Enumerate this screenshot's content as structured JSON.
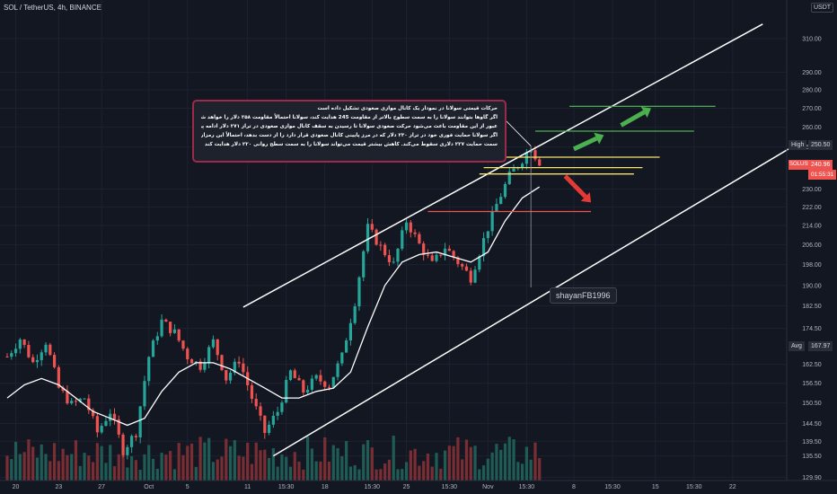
{
  "header": {
    "title": "SOL / TetherUS, 4h, BINANCE",
    "currency": "USDT"
  },
  "note": {
    "lines": [
      "حرکات قیمتی سولانا در نمودار یک کانال موازی صعودی تشکیل داده است",
      "اگر گاوها بتوانند سولانا را به سمت سطوح بالاتر از مقاومت 245 هدایت کند، سولانا احتمالاً مقاومت ۲۵۸ دلار را خواهد شکست",
      "عبور از این مقاومت باعث می‌شود حرکت صعودی سولانا تا رسیدن به سقف کانال موازی صعودی در تراز ۲۷۱ دلار ادامه پیدا کند",
      "اگر سولانا حمایت فوری خود در تراز ۲۳۰ دلار که در مرز پایینی کانال صعودی قرار دارد را از دست بدهد، احتمالاً این رمزارز به",
      "سمت حمایت ۲۲۷ دلاری سقوط می‌کند. کاهش بیشتر قیمت می‌تواند سولانا را به سمت سطح روانی ۲۲۰ دلار هدایت کند"
    ]
  },
  "watermark": "shayanFB1996",
  "price_axis": {
    "labels": [
      "310.00",
      "290.00",
      "280.00",
      "270.00",
      "260.00",
      "250.00",
      "230.00",
      "222.00",
      "214.00",
      "206.00",
      "198.00",
      "190.00",
      "182.50",
      "174.50",
      "162.50",
      "156.50",
      "150.50",
      "144.50",
      "139.50",
      "135.50",
      "129.90"
    ],
    "high_label": "High",
    "high_value": "250.50",
    "symbol_label": "SOLUSDT",
    "last_price": "240.96",
    "countdown": "01:55:31",
    "avg_label": "Avg",
    "avg_value": "167.97"
  },
  "time_axis": {
    "labels": [
      "20",
      "23",
      "27",
      "Oct",
      "5",
      "11",
      "15:30",
      "18",
      "15:30",
      "25",
      "15:30",
      "Nov",
      "15:30",
      "8",
      "15:30",
      "15",
      "15:30",
      "22"
    ]
  },
  "colors": {
    "background": "#131722",
    "up": "#26a69a",
    "down": "#ef5350",
    "vol_up": "#1f5c55",
    "vol_down": "#7a2e33",
    "ma": "#ffffff",
    "channel": "#ffffff",
    "support": "#ef5350",
    "yellow_line": "#f7e36b",
    "target_line": "#4caf50",
    "arrow_up": "#4caf50",
    "arrow_down": "#e53935",
    "grid": "#1e2230"
  },
  "chart_data": {
    "type": "candlestick",
    "symbol": "SOL / TetherUS",
    "timeframe": "4h",
    "exchange": "BINANCE",
    "y_axis": {
      "scale": "log",
      "min": 129.9,
      "max": 320
    },
    "time_label_index": [
      [
        "20",
        2
      ],
      [
        "23",
        12
      ],
      [
        "27",
        22
      ],
      [
        "Oct",
        33
      ],
      [
        "5",
        42
      ],
      [
        "11",
        56
      ],
      [
        "15:30",
        65
      ],
      [
        "18",
        74
      ],
      [
        "15:30",
        85
      ],
      [
        "25",
        93
      ],
      [
        "15:30",
        103
      ],
      [
        "Nov",
        112
      ],
      [
        "15:30",
        121
      ],
      [
        "8",
        132
      ],
      [
        "15:30",
        141
      ],
      [
        "15",
        151
      ],
      [
        "15:30",
        160
      ],
      [
        "22",
        169
      ]
    ],
    "close_path": [
      [
        0,
        165
      ],
      [
        3,
        171
      ],
      [
        6,
        163
      ],
      [
        9,
        170
      ],
      [
        12,
        155
      ],
      [
        15,
        150
      ],
      [
        18,
        152
      ],
      [
        21,
        142
      ],
      [
        24,
        148
      ],
      [
        27,
        137
      ],
      [
        30,
        142
      ],
      [
        33,
        165
      ],
      [
        36,
        177
      ],
      [
        39,
        173
      ],
      [
        42,
        165
      ],
      [
        45,
        162
      ],
      [
        48,
        170
      ],
      [
        51,
        158
      ],
      [
        54,
        164
      ],
      [
        57,
        152
      ],
      [
        60,
        142
      ],
      [
        63,
        148
      ],
      [
        66,
        160
      ],
      [
        69,
        154
      ],
      [
        72,
        158
      ],
      [
        75,
        156
      ],
      [
        78,
        165
      ],
      [
        81,
        184
      ],
      [
        84,
        213
      ],
      [
        87,
        205
      ],
      [
        90,
        198
      ],
      [
        93,
        216
      ],
      [
        96,
        206
      ],
      [
        99,
        198
      ],
      [
        102,
        205
      ],
      [
        105,
        199
      ],
      [
        108,
        193
      ],
      [
        111,
        208
      ],
      [
        114,
        223
      ],
      [
        117,
        236
      ],
      [
        120,
        244
      ],
      [
        122,
        250.5
      ],
      [
        124,
        240.96
      ]
    ],
    "high": 250.5,
    "last_price": 240.96,
    "average": 167.97,
    "moving_average": [
      [
        0,
        152
      ],
      [
        4,
        156
      ],
      [
        8,
        158
      ],
      [
        12,
        156
      ],
      [
        16,
        152
      ],
      [
        20,
        148
      ],
      [
        24,
        146
      ],
      [
        28,
        144
      ],
      [
        32,
        146
      ],
      [
        36,
        154
      ],
      [
        40,
        160
      ],
      [
        44,
        163
      ],
      [
        48,
        163
      ],
      [
        52,
        161
      ],
      [
        56,
        158
      ],
      [
        60,
        155
      ],
      [
        64,
        152
      ],
      [
        68,
        152
      ],
      [
        72,
        154
      ],
      [
        76,
        155
      ],
      [
        80,
        160
      ],
      [
        84,
        175
      ],
      [
        88,
        190
      ],
      [
        92,
        199
      ],
      [
        96,
        202
      ],
      [
        100,
        203
      ],
      [
        104,
        201
      ],
      [
        108,
        199
      ],
      [
        112,
        203
      ],
      [
        116,
        216
      ],
      [
        120,
        226
      ],
      [
        124,
        231
      ]
    ],
    "channel": {
      "upper": [
        [
          55,
          182
        ],
        [
          176,
          319
        ]
      ],
      "lower": [
        [
          62,
          135.5
        ],
        [
          182,
          249
        ]
      ]
    },
    "levels": [
      {
        "price": 271,
        "from": 131,
        "to": 165,
        "color": "green"
      },
      {
        "price": 258,
        "from": 123,
        "to": 160,
        "color": "green"
      },
      {
        "price": 245,
        "from": 115,
        "to": 152,
        "color": "yellow"
      },
      {
        "price": 240,
        "from": 111,
        "to": 148,
        "color": "yellow"
      },
      {
        "price": 237,
        "from": 110,
        "to": 146,
        "color": "yellow"
      },
      {
        "price": 220,
        "from": 98,
        "to": 136,
        "color": "red"
      }
    ],
    "arrows": [
      {
        "from": [
          132,
          249
        ],
        "to": [
          139,
          256
        ],
        "direction": "up"
      },
      {
        "from": [
          143,
          261
        ],
        "to": [
          150,
          270
        ],
        "direction": "up"
      },
      {
        "from": [
          130,
          236
        ],
        "to": [
          136,
          224
        ],
        "direction": "down"
      }
    ]
  }
}
